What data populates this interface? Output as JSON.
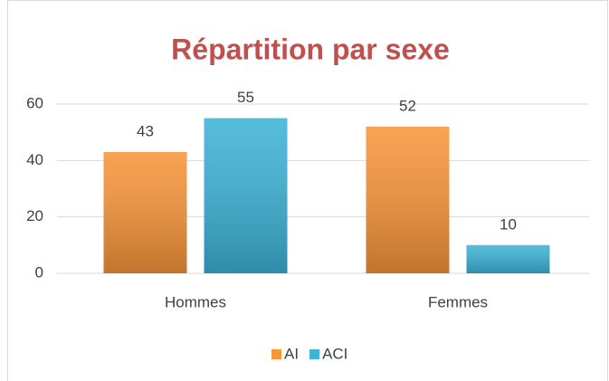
{
  "chart_data": {
    "type": "bar",
    "title": "Répartition par sexe",
    "title_color": "#c0504d",
    "categories": [
      "Hommes",
      "Femmes"
    ],
    "series": [
      {
        "name": "AI",
        "color": "#f7953a",
        "values": [
          43,
          52
        ]
      },
      {
        "name": "ACI",
        "color": "#3db3d6",
        "values": [
          55,
          10
        ]
      }
    ],
    "ylim": [
      0,
      60
    ],
    "yticks": [
      0,
      20,
      40,
      60
    ],
    "grid": true,
    "legend": "bottom"
  }
}
